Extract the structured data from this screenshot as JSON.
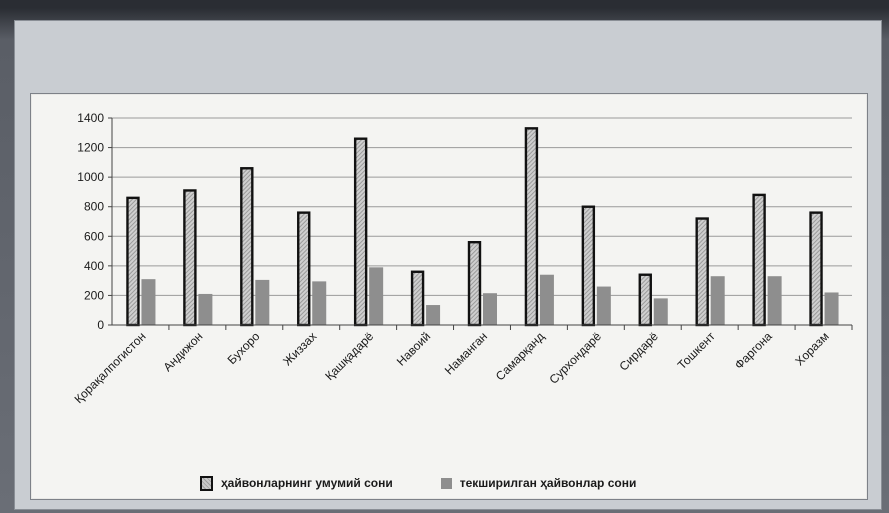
{
  "chart_data": {
    "type": "bar",
    "categories": [
      "Қорақалпогистон",
      "Андижон",
      "Бухоро",
      "Жиззах",
      "Қашқадарё",
      "Навоий",
      "Наманган",
      "Самарқанд",
      "Сурхондарё",
      "Сирдарё",
      "Тошкент",
      "Фаргона",
      "Хоразм"
    ],
    "series": [
      {
        "name": "ҳайвонларнинг умумий сони",
        "values": [
          860,
          910,
          1060,
          760,
          1260,
          360,
          560,
          1330,
          800,
          340,
          720,
          880,
          760
        ],
        "color": "#b8b8b8"
      },
      {
        "name": "текширилган ҳайвонлар сони",
        "values": [
          310,
          210,
          305,
          295,
          390,
          135,
          215,
          340,
          260,
          180,
          330,
          330,
          220
        ],
        "color": "#8e8e8e"
      }
    ],
    "yticks": [
      0,
      200,
      400,
      600,
      800,
      1000,
      1200,
      1400
    ],
    "ylim": [
      0,
      1400
    ],
    "grid": true,
    "legend_position": "bottom",
    "title": "",
    "xlabel": "",
    "ylabel": ""
  }
}
